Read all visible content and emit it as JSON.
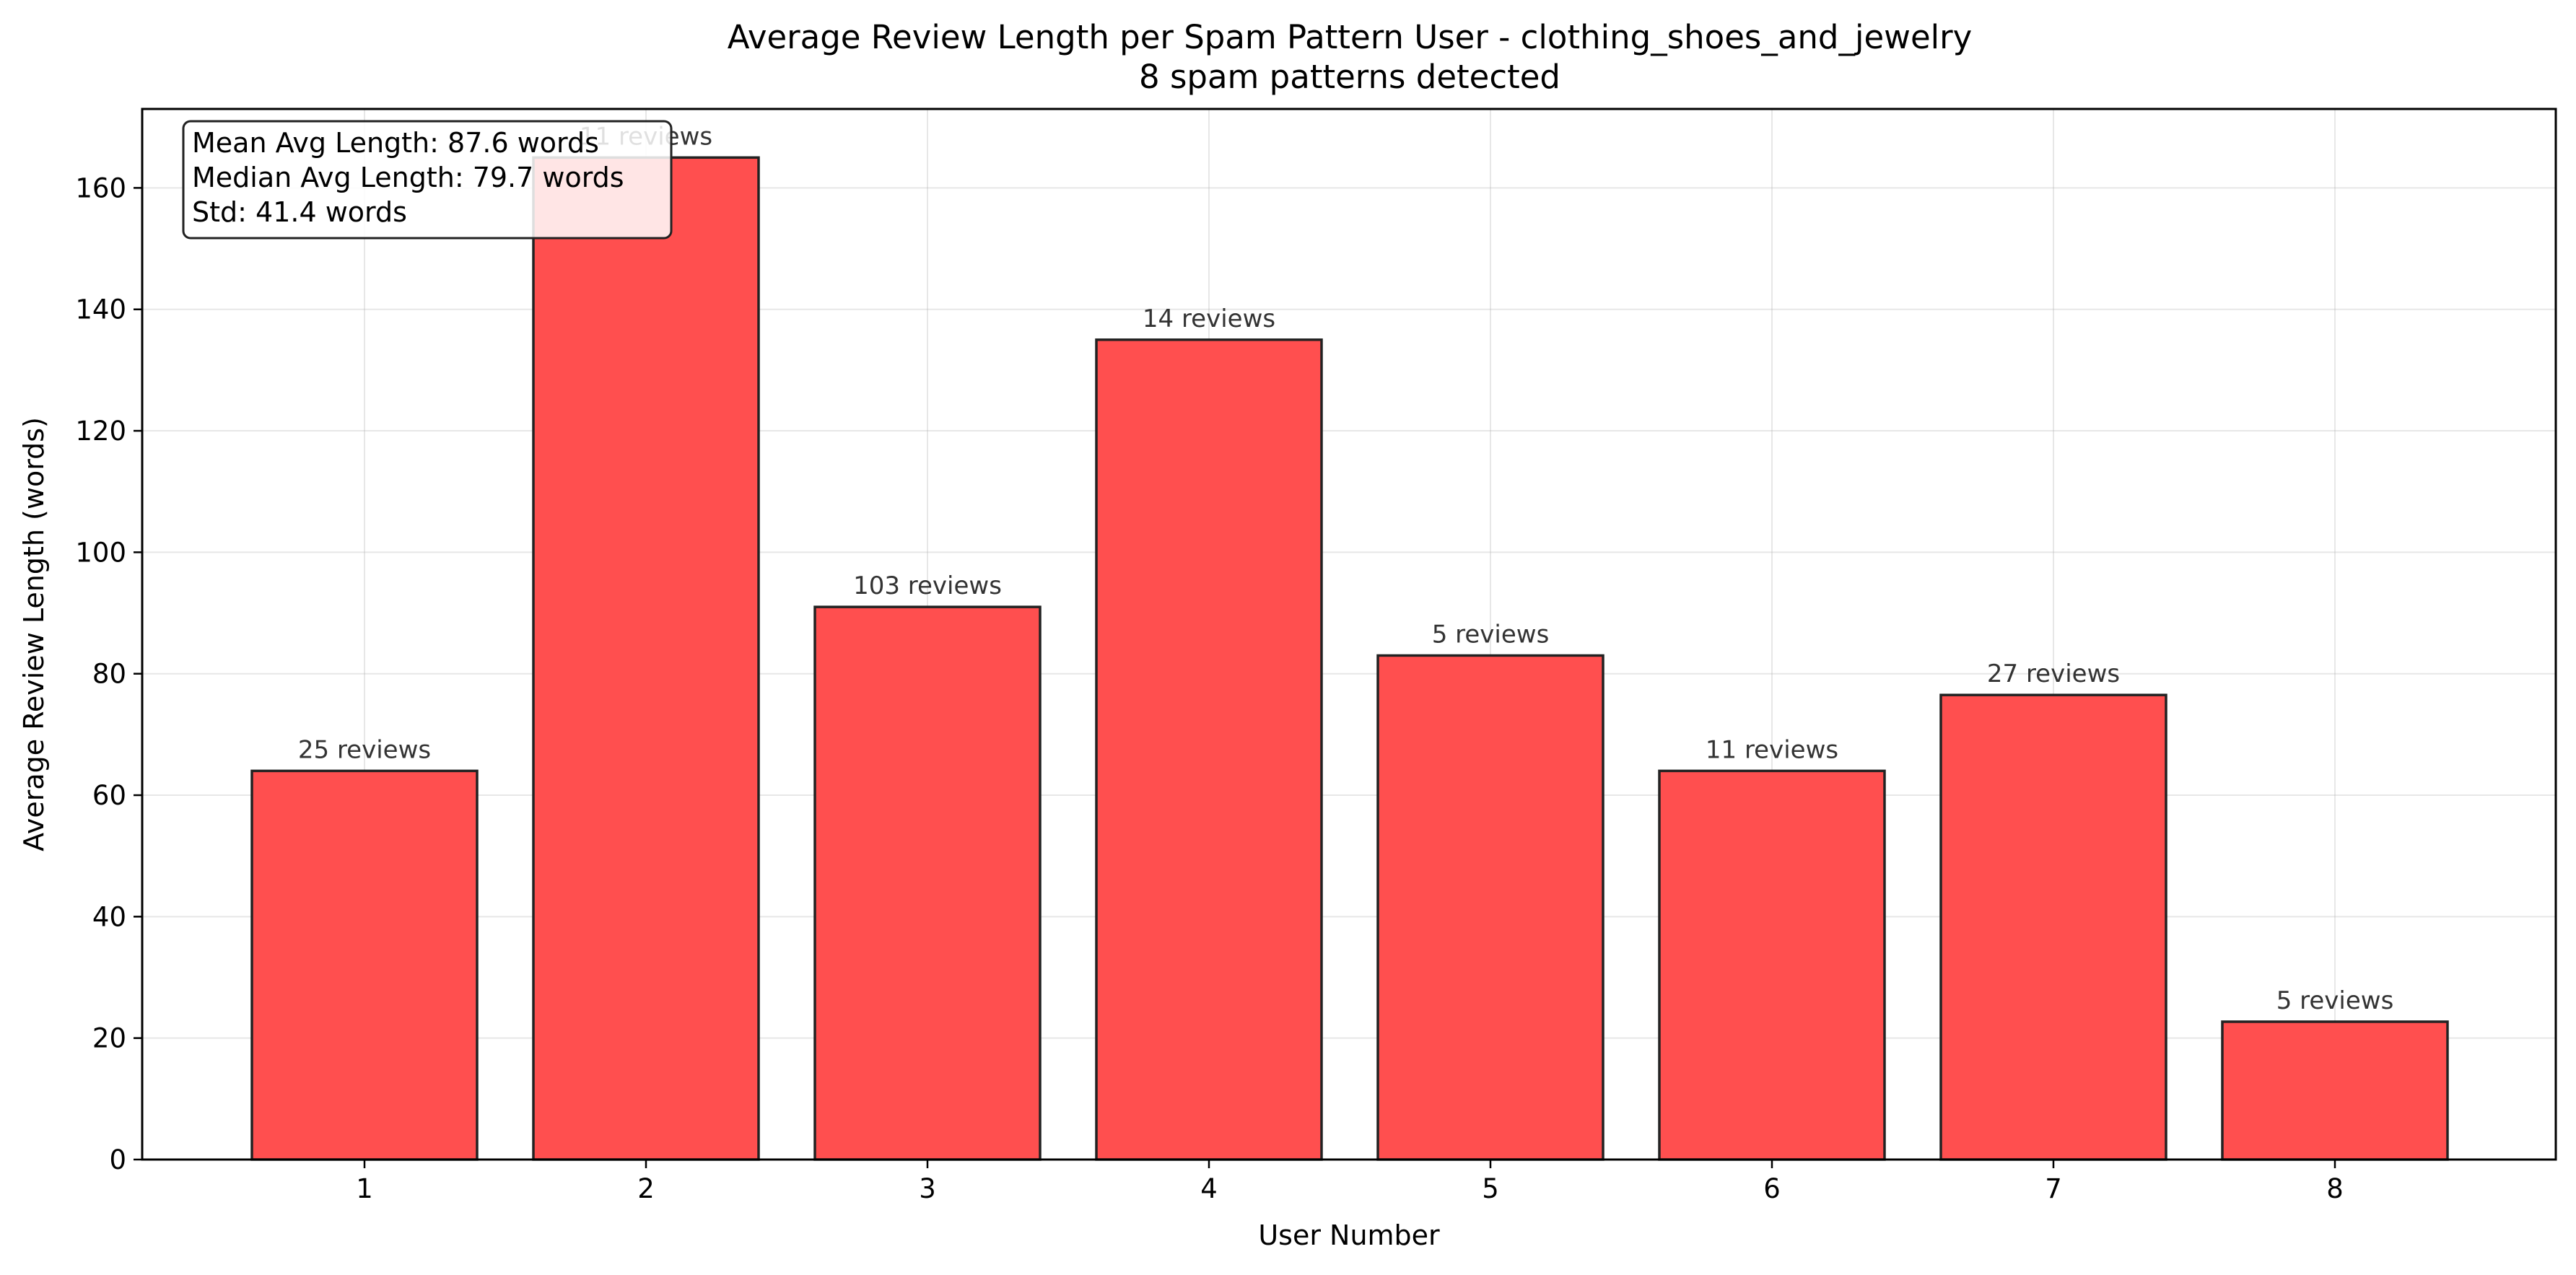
{
  "chart_data": {
    "type": "bar",
    "title": "Average Review Length per Spam Pattern User - clothing_shoes_and_jewelry",
    "subtitle": "8 spam patterns detected",
    "xlabel": "User Number",
    "ylabel": "Average Review Length (words)",
    "categories": [
      "1",
      "2",
      "3",
      "4",
      "5",
      "6",
      "7",
      "8"
    ],
    "values": [
      64,
      165,
      91,
      135,
      83,
      64,
      76.5,
      22.7
    ],
    "data_labels": [
      "25 reviews",
      "11 reviews",
      "103 reviews",
      "14 reviews",
      "5 reviews",
      "11 reviews",
      "27 reviews",
      "5 reviews"
    ],
    "ylim": [
      0,
      173
    ],
    "yticks": [
      0,
      20,
      40,
      60,
      80,
      100,
      120,
      140,
      160
    ],
    "grid": true,
    "bar_color": "#ff4f4f",
    "bar_edge_color": "#222222",
    "stats_box": {
      "placement": "top-left",
      "lines": [
        "Mean Avg Length: 87.6 words",
        "Median Avg Length: 79.7 words",
        "Std: 41.4 words"
      ]
    }
  }
}
